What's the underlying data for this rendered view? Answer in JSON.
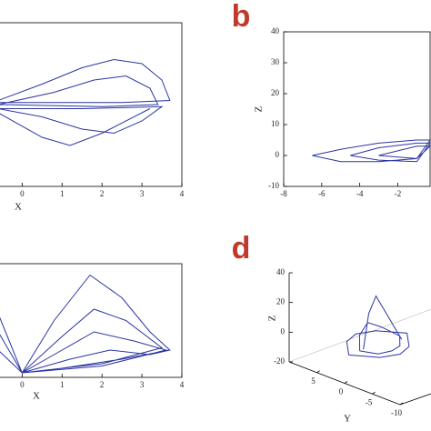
{
  "chart_data": [
    {
      "type": "line",
      "xlabel": "X",
      "xlim": [
        -0.6,
        4
      ],
      "ylim": [
        -2,
        2
      ],
      "xticks": [
        0,
        1,
        2,
        3,
        4
      ],
      "yticks": [],
      "series": [
        {
          "color": "#2b35a0",
          "x": [
            -0.6,
            0.5,
            1.5,
            2.3,
            3.0,
            3.5,
            3.7,
            2.5,
            1.0,
            -0.6,
            null,
            -0.6,
            0.8,
            1.8,
            2.6,
            3.2,
            3.4,
            2.0,
            -0.6,
            null,
            -0.6,
            0.5,
            1.5,
            2.3,
            3.0,
            3.5,
            1.5,
            -0.6,
            null,
            -0.6,
            0.5,
            1.2,
            2.0,
            3.2
          ],
          "values": [
            0.1,
            0.5,
            0.9,
            1.1,
            1.0,
            0.6,
            0.1,
            0.05,
            0.05,
            0.05,
            null,
            0,
            0.3,
            0.6,
            0.7,
            0.4,
            0,
            -0.05,
            0,
            null,
            -0.1,
            -0.3,
            -0.6,
            -0.7,
            -0.4,
            -0.05,
            -0.1,
            -0.1,
            null,
            -0.2,
            -0.8,
            -1.0,
            -0.7,
            -0.1
          ]
        }
      ]
    },
    {
      "type": "line",
      "panel_label": "b",
      "ylabel": "Z",
      "xlim": [
        -8,
        -0.3
      ],
      "ylim": [
        -10,
        40
      ],
      "xticks": [
        -8,
        -6,
        -4,
        -2
      ],
      "yticks": [
        40,
        30,
        20,
        10,
        0,
        -10
      ],
      "series": [
        {
          "color": "#2b35a0",
          "x": [
            -6.5,
            -5,
            -3,
            -1,
            -0.3,
            -1,
            -3,
            -5,
            -6.5,
            null,
            -4.5,
            -3,
            -1,
            -0.3,
            -1,
            -3,
            -4.5,
            null,
            -3,
            -1,
            -0.3,
            -1,
            -3
          ],
          "values": [
            0,
            2,
            4,
            5,
            5,
            -1,
            -2,
            -2,
            0,
            null,
            0,
            2.5,
            4,
            4,
            -2,
            -1.5,
            0,
            null,
            0,
            3,
            3,
            -1,
            0
          ]
        }
      ]
    },
    {
      "type": "line",
      "xlabel": "X",
      "xlim": [
        -0.6,
        4
      ],
      "ylim": [
        0,
        50
      ],
      "xticks": [
        0,
        1,
        2,
        3,
        4
      ],
      "yticks": [],
      "series": [
        {
          "color": "#2b35a0",
          "x": [
            -0.6,
            -0.3,
            0,
            0.8,
            1.7,
            2.5,
            3.2,
            3.7,
            2.5,
            1,
            0,
            null,
            -0.6,
            0,
            1,
            1.8,
            2.6,
            3.5,
            2,
            0,
            null,
            -0.6,
            0,
            1,
            1.8,
            2.8,
            3.6,
            2,
            0,
            null,
            0,
            1.2,
            2.2,
            3.2,
            3.7
          ],
          "values": [
            28,
            15,
            2,
            25,
            45,
            35,
            20,
            12,
            8,
            4,
            2,
            null,
            20,
            2,
            18,
            30,
            25,
            13,
            6,
            2,
            null,
            12,
            2,
            12,
            20,
            16,
            12,
            5,
            2,
            null,
            2,
            8,
            12,
            10,
            12
          ]
        }
      ]
    },
    {
      "type": "line3d",
      "panel_label": "d",
      "zlabel": "Z",
      "ylabel": "Y",
      "zlim": [
        -20,
        40
      ],
      "ylim": [
        10,
        -10
      ],
      "zticks": [
        40,
        20,
        0,
        -20
      ],
      "yticks": [
        5,
        0,
        -5,
        -10
      ],
      "series": [
        {
          "color": "#2b35a0",
          "x": [
            -8,
            -4,
            0,
            4,
            8,
            4,
            0,
            -4,
            -8,
            null,
            -4,
            -1,
            1,
            3,
            5,
            null,
            -5,
            -2,
            1,
            4,
            6,
            3,
            0,
            -3,
            -5
          ],
          "y": [
            -6,
            -3,
            -2,
            -3,
            -6,
            -9,
            -10,
            -9,
            -6,
            null,
            -6,
            -5,
            -5,
            -6,
            -7,
            null,
            -6,
            -4,
            -3.5,
            -4,
            -6,
            -8,
            -8.5,
            -8,
            -6
          ],
          "z": [
            15,
            16,
            16,
            16,
            15,
            14,
            14,
            14,
            15,
            null,
            15,
            35,
            45,
            30,
            15,
            null,
            15,
            20,
            25,
            20,
            15,
            14,
            14,
            14,
            15
          ]
        }
      ]
    }
  ]
}
